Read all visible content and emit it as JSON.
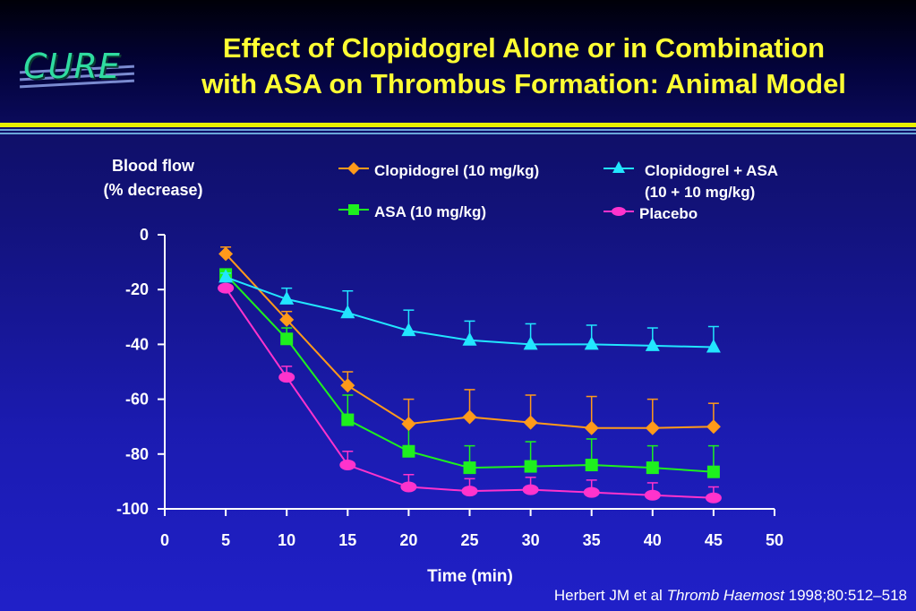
{
  "logo": {
    "text": "CURE"
  },
  "slide": {
    "title_line1": "Effect of Clopidogrel Alone or in Combination",
    "title_line2": "with ASA on Thrombus Formation: Animal Model"
  },
  "citation": {
    "authors": "Herbert JM et al",
    "journal": "Thromb Haemost",
    "details": "1998;80:512–518"
  },
  "colors": {
    "title": "#ffff33",
    "clopidogrel": "#ff9a1a",
    "asa": "#1ef01e",
    "combo": "#22e6ff",
    "placebo": "#ff33cc"
  },
  "chart_data": {
    "type": "line",
    "ylabel_line1": "Blood flow",
    "ylabel_line2": "(% decrease)",
    "xlabel": "Time (min)",
    "xlim": [
      0,
      50
    ],
    "ylim": [
      -100,
      0
    ],
    "xticks": [
      0,
      5,
      10,
      15,
      20,
      25,
      30,
      35,
      40,
      45,
      50
    ],
    "yticks": [
      0,
      -20,
      -40,
      -60,
      -80,
      -100
    ],
    "grid": false,
    "legend_position": "top",
    "x": [
      5,
      10,
      15,
      20,
      25,
      30,
      35,
      40,
      45
    ],
    "series": [
      {
        "name": "Clopidogrel (10 mg/kg)",
        "marker": "diamond",
        "color": "#ff9a1a",
        "values": [
          -7,
          -31,
          -55,
          -69,
          -66.5,
          -68.5,
          -70.5,
          -70.5,
          -70
        ],
        "errors": [
          2.5,
          3,
          5,
          9,
          10,
          10,
          11.5,
          10.5,
          8.5
        ]
      },
      {
        "name": "ASA (10 mg/kg)",
        "marker": "square",
        "color": "#1ef01e",
        "values": [
          -14.5,
          -38,
          -67.5,
          -79,
          -85,
          -84.5,
          -84,
          -85,
          -86.5
        ],
        "errors": [
          2,
          4,
          9,
          10,
          8,
          9,
          9.5,
          8,
          9.5
        ]
      },
      {
        "name": "Clopidogrel + ASA",
        "name_line2": "(10 + 10 mg/kg)",
        "marker": "triangle",
        "color": "#22e6ff",
        "values": [
          -15.5,
          -23.5,
          -28.5,
          -35,
          -38.5,
          -40,
          -40,
          -40.5,
          -41
        ],
        "errors": [
          1.5,
          4,
          8,
          7.5,
          7,
          7.5,
          7,
          6.5,
          7.5
        ]
      },
      {
        "name": "Placebo",
        "marker": "circle",
        "color": "#ff33cc",
        "values": [
          -19.5,
          -52,
          -84,
          -92,
          -93.5,
          -93,
          -94,
          -95,
          -96
        ],
        "errors": [
          1,
          4,
          5,
          4.5,
          4.5,
          4.5,
          4.5,
          4.5,
          4
        ]
      }
    ]
  }
}
